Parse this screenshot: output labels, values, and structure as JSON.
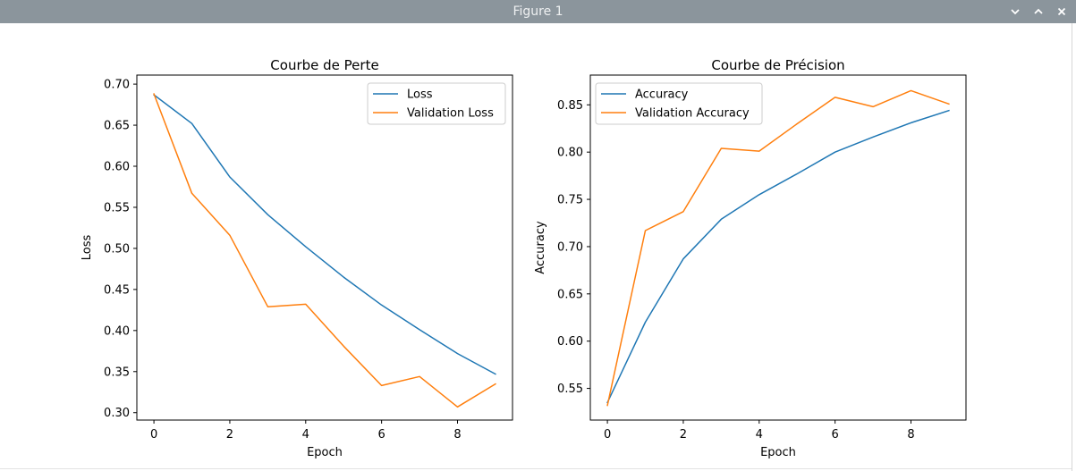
{
  "window": {
    "title": "Figure 1",
    "buttons": {
      "minimize_icon": "chevron-down-icon",
      "maximize_icon": "chevron-up-icon",
      "close_icon": "close-icon"
    }
  },
  "colors": {
    "series_blue": "#1f77b4",
    "series_orange": "#ff7f0e",
    "titlebar_bg": "#8b959c"
  },
  "chart_data": [
    {
      "type": "line",
      "title": "Courbe de Perte",
      "xlabel": "Epoch",
      "ylabel": "Loss",
      "xlim": [
        -0.45,
        9.45
      ],
      "ylim": [
        0.291,
        0.711
      ],
      "xticks": [
        0,
        2,
        4,
        6,
        8
      ],
      "xtick_labels": [
        "0",
        "2",
        "4",
        "6",
        "8"
      ],
      "yticks": [
        0.3,
        0.35,
        0.4,
        0.45,
        0.5,
        0.55,
        0.6,
        0.65,
        0.7
      ],
      "ytick_labels": [
        "0.30",
        "0.35",
        "0.40",
        "0.45",
        "0.50",
        "0.55",
        "0.60",
        "0.65",
        "0.70"
      ],
      "legend_position": "upper right",
      "x": [
        0,
        1,
        2,
        3,
        4,
        5,
        6,
        7,
        8,
        9
      ],
      "series": [
        {
          "name": "Loss",
          "color": "#1f77b4",
          "values": [
            0.687,
            0.652,
            0.587,
            0.541,
            0.502,
            0.465,
            0.431,
            0.401,
            0.372,
            0.347
          ]
        },
        {
          "name": "Validation Loss",
          "color": "#ff7f0e",
          "values": [
            0.688,
            0.567,
            0.516,
            0.429,
            0.432,
            0.381,
            0.333,
            0.344,
            0.307,
            0.335
          ]
        }
      ]
    },
    {
      "type": "line",
      "title": "Courbe de Précision",
      "xlabel": "Epoch",
      "ylabel": "Accuracy",
      "xlim": [
        -0.45,
        9.45
      ],
      "ylim": [
        0.5165,
        0.8815
      ],
      "xticks": [
        0,
        2,
        4,
        6,
        8
      ],
      "xtick_labels": [
        "0",
        "2",
        "4",
        "6",
        "8"
      ],
      "yticks": [
        0.55,
        0.6,
        0.65,
        0.7,
        0.75,
        0.8,
        0.85
      ],
      "ytick_labels": [
        "0.55",
        "0.60",
        "0.65",
        "0.70",
        "0.75",
        "0.80",
        "0.85"
      ],
      "legend_position": "upper left",
      "x": [
        0,
        1,
        2,
        3,
        4,
        5,
        6,
        7,
        8,
        9
      ],
      "series": [
        {
          "name": "Accuracy",
          "color": "#1f77b4",
          "values": [
            0.535,
            0.62,
            0.687,
            0.729,
            0.755,
            0.777,
            0.8,
            0.816,
            0.831,
            0.844
          ]
        },
        {
          "name": "Validation Accuracy",
          "color": "#ff7f0e",
          "values": [
            0.532,
            0.717,
            0.737,
            0.804,
            0.801,
            0.83,
            0.858,
            0.848,
            0.865,
            0.851
          ]
        }
      ]
    }
  ]
}
